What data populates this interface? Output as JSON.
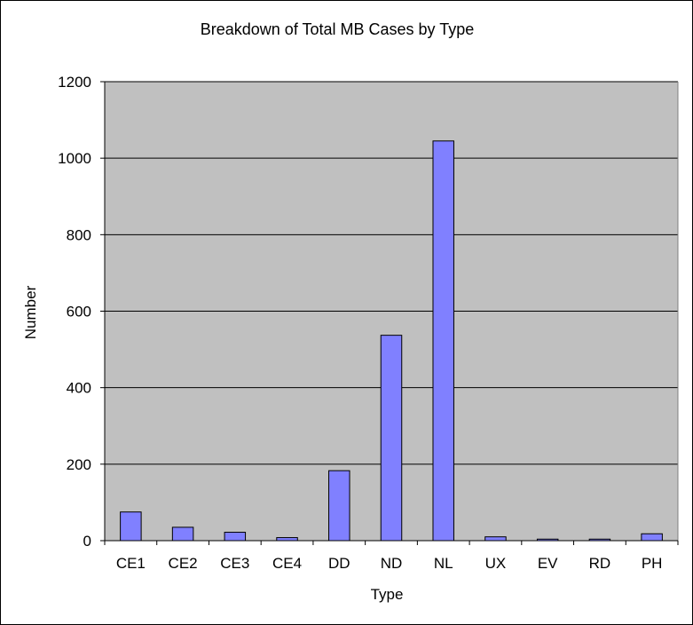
{
  "chart_data": {
    "type": "bar",
    "title": "Breakdown of Total MB Cases by Type",
    "xlabel": "Type",
    "ylabel": "Number",
    "categories": [
      "CE1",
      "CE2",
      "CE3",
      "CE4",
      "DD",
      "ND",
      "NL",
      "UX",
      "EV",
      "RD",
      "PH"
    ],
    "values": [
      75,
      35,
      22,
      8,
      183,
      537,
      1045,
      10,
      4,
      4,
      18
    ],
    "ylim": [
      0,
      1200
    ],
    "yticks": [
      0,
      200,
      400,
      600,
      800,
      1000,
      1200
    ],
    "grid": true,
    "legend": "none",
    "colors": {
      "bar_fill": "#8080ff",
      "bar_stroke": "#000000",
      "plot_bg": "#c0c0c0",
      "gridline": "#000000"
    }
  }
}
